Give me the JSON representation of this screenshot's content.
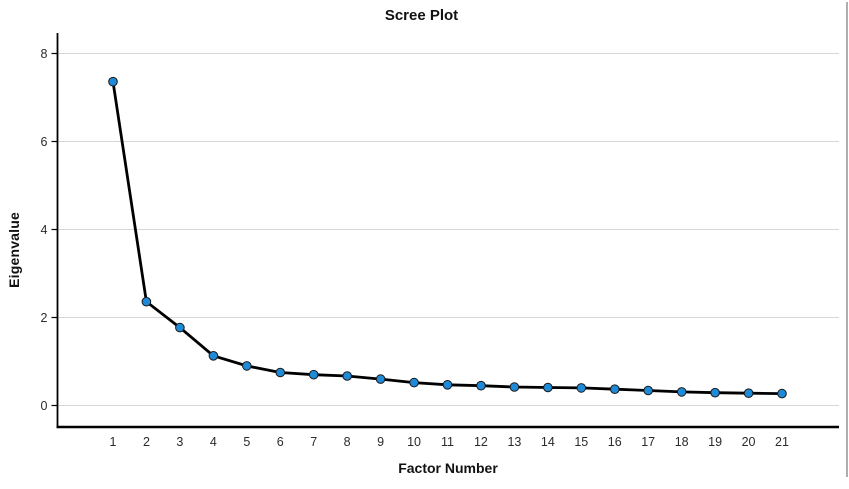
{
  "chart": {
    "title": "Scree Plot",
    "x_axis_label": "Factor Number",
    "y_axis_label": "Eigenvalue"
  },
  "chart_data": {
    "type": "line",
    "title": "Scree Plot",
    "xlabel": "Factor Number",
    "ylabel": "Eigenvalue",
    "x": [
      1,
      2,
      3,
      4,
      5,
      6,
      7,
      8,
      9,
      10,
      11,
      12,
      13,
      14,
      15,
      16,
      17,
      18,
      19,
      20,
      21
    ],
    "values": [
      7.36,
      2.36,
      1.77,
      1.13,
      0.9,
      0.75,
      0.7,
      0.67,
      0.6,
      0.52,
      0.47,
      0.45,
      0.42,
      0.41,
      0.4,
      0.37,
      0.34,
      0.31,
      0.29,
      0.28,
      0.27
    ],
    "y_ticks": [
      0,
      2,
      4,
      6,
      8
    ],
    "ylim": [
      0,
      8.5
    ],
    "grid": "horizontal-only",
    "legend": "none",
    "line_color": "#000000",
    "marker": "circle",
    "marker_color": "#1f8bd8",
    "marker_border_color": "#1a1a1a",
    "gridline_color": "#d6d6d6",
    "axis_color": "#000000",
    "tick_label_color": "#2b2b2b"
  }
}
